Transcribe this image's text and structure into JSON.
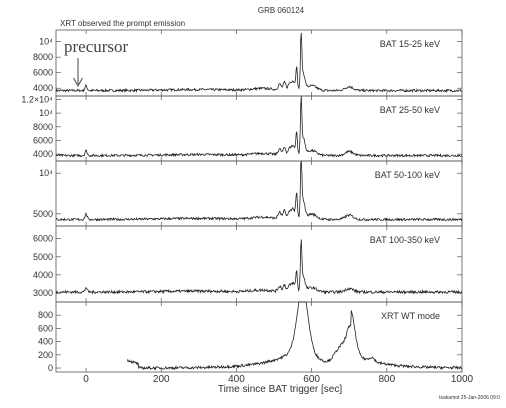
{
  "chart_data": {
    "type": "line",
    "title": "GRB 060124",
    "subtitle": "XRT observed the prompt emission",
    "annotation": "precursor",
    "xlabel": "Time since BAT trigger [sec]",
    "credit": "tsakamot 25-Jan-2006 09:0",
    "xlim": [
      -80,
      1000
    ],
    "x_ticks": [
      0,
      200,
      400,
      600,
      800,
      1000
    ],
    "x_tick_labels": [
      "0",
      "200",
      "400",
      "600",
      "800",
      "1000"
    ],
    "panels": [
      {
        "label": "BAT 15-25 keV",
        "ylim": [
          3000,
          11500
        ],
        "y_ticks": [
          4000,
          6000,
          8000,
          10000
        ],
        "y_tick_labels": [
          "4000",
          "6000",
          "8000",
          "10⁴"
        ],
        "baseline": 3700,
        "peak": 10000,
        "x_start": -80
      },
      {
        "label": "BAT 25-50 keV",
        "ylim": [
          3000,
          12500
        ],
        "y_ticks": [
          4000,
          6000,
          8000,
          10000,
          12000
        ],
        "y_tick_labels": [
          "4000",
          "6000",
          "8000",
          "10⁴",
          "1.2×10⁴"
        ],
        "baseline": 3800,
        "peak": 11000,
        "x_start": -80
      },
      {
        "label": "BAT 50-100 keV",
        "ylim": [
          3500,
          11500
        ],
        "y_ticks": [
          5000,
          10000
        ],
        "y_tick_labels": [
          "5000",
          "10⁴"
        ],
        "baseline": 4300,
        "peak": 11000,
        "x_start": -80
      },
      {
        "label": "BAT 100-350 keV",
        "ylim": [
          2500,
          6700
        ],
        "y_ticks": [
          3000,
          4000,
          5000,
          6000
        ],
        "y_tick_labels": [
          "3000",
          "4000",
          "5000",
          "6000"
        ],
        "baseline": 3050,
        "peak": 5500,
        "x_start": -80
      },
      {
        "label": "XRT WT mode",
        "ylim": [
          -60,
          1000
        ],
        "y_ticks": [
          0,
          200,
          400,
          600,
          800
        ],
        "y_tick_labels": [
          "0",
          "200",
          "400",
          "600",
          "800"
        ],
        "baseline": 0,
        "peak": 820,
        "x_start": 110
      }
    ]
  }
}
